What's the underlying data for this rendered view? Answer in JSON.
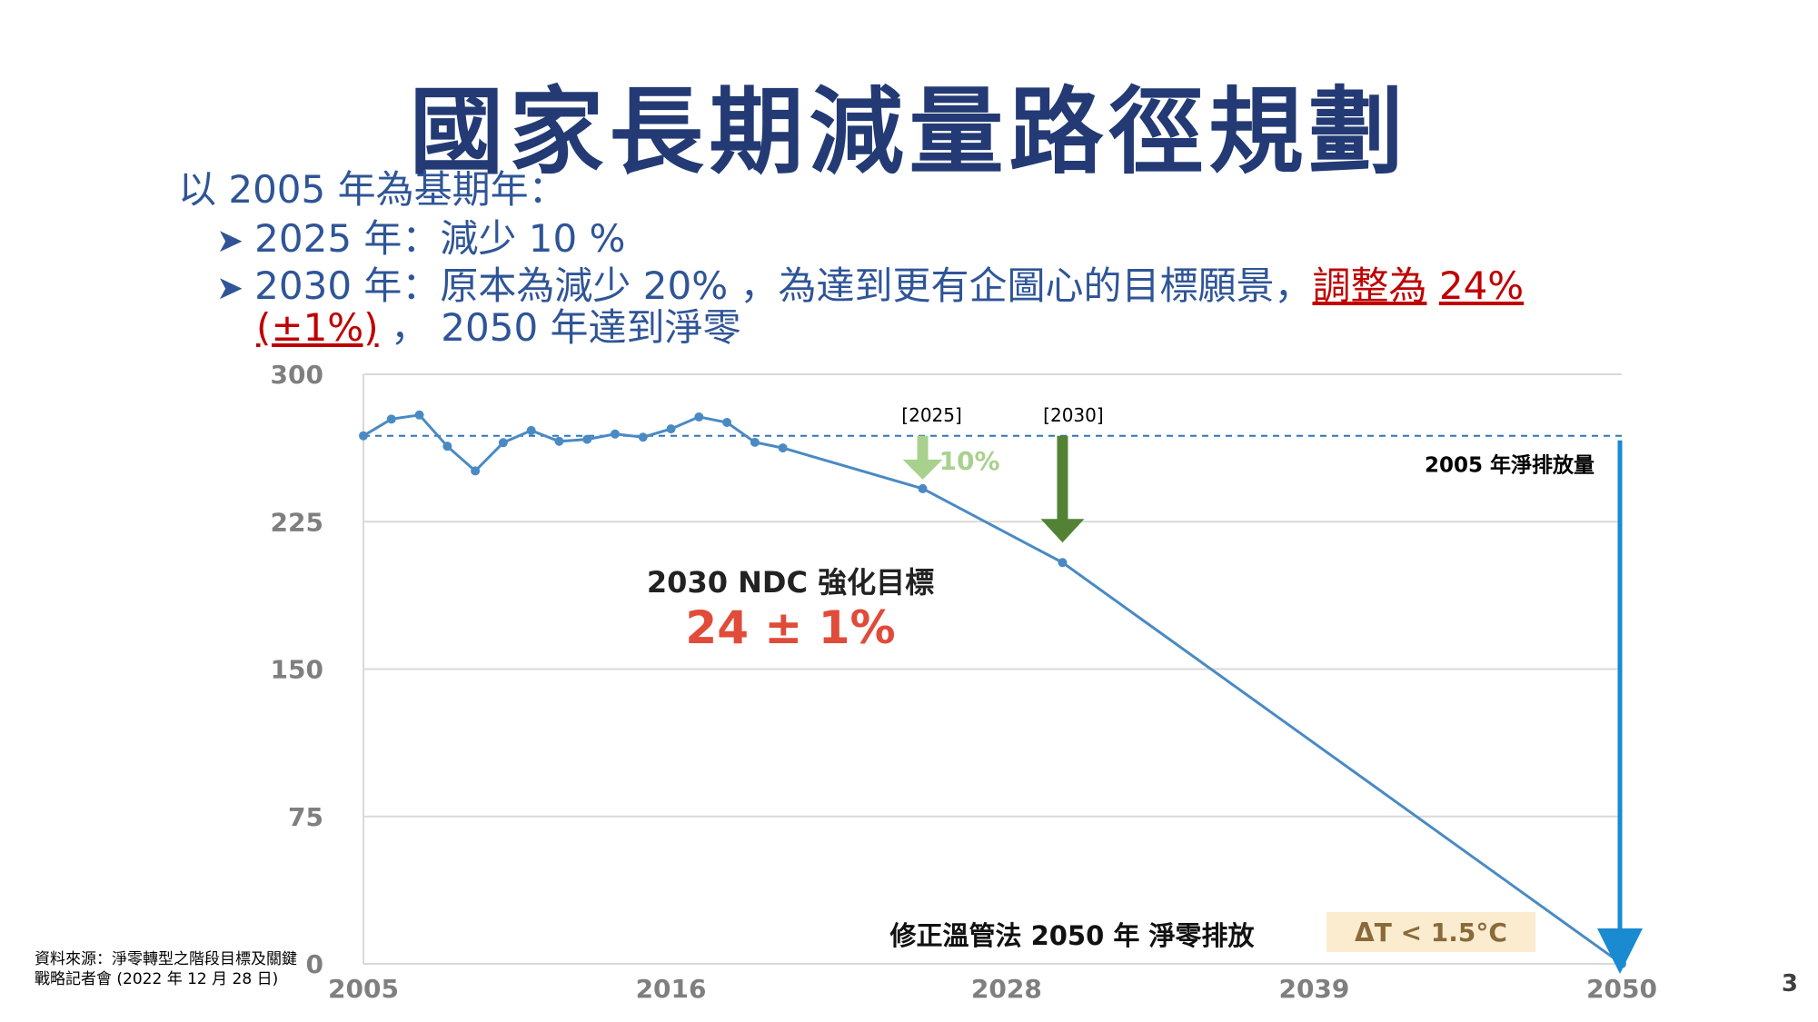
{
  "slide": {
    "title": "國家長期減量路徑規劃",
    "intro": "以 2005 年為基期年：",
    "bullets": [
      {
        "text": "2025 年：減少 10 %"
      },
      {
        "text_before": "2030 年：原本為減少 20% ，為達到更有企圖心的目標願景，",
        "hl1": "調整為",
        "hl2": "24%",
        "hl3": "(±1%)",
        "text_after": "， 2050 年達到淨零"
      }
    ],
    "source": "資料來源：淨零轉型之階段目標及關鍵戰略記者會 (2022 年 12 月 28 日)",
    "page_number": "3"
  },
  "chart_data": {
    "type": "line",
    "x_ticks": [
      "2005",
      "2016",
      "2028",
      "2039",
      "2050"
    ],
    "y_ticks": [
      "0",
      "75",
      "150",
      "225",
      "300"
    ],
    "ylim": [
      0,
      300
    ],
    "xlim": [
      2005,
      2050
    ],
    "grid": true,
    "series": [
      {
        "historical": [
          [
            2005,
            268.7
          ],
          [
            2006,
            277.2
          ],
          [
            2007,
            279.3
          ],
          [
            2008,
            263.4
          ],
          [
            2009,
            250.8
          ],
          [
            2010,
            265.2
          ],
          [
            2011,
            271.4
          ],
          [
            2012,
            265.9
          ],
          [
            2013,
            266.9
          ],
          [
            2014,
            269.6
          ],
          [
            2015,
            268.0
          ],
          [
            2016,
            272.2
          ],
          [
            2017,
            278.3
          ],
          [
            2018,
            275.5
          ],
          [
            2019,
            265.4
          ],
          [
            2020,
            262.5
          ]
        ],
        "pathway": [
          [
            2020,
            262.5
          ],
          [
            2025,
            241.8
          ],
          [
            2030,
            204.2
          ],
          [
            2050,
            0
          ]
        ],
        "markers": [
          [
            2025,
            241.8
          ],
          [
            2030,
            204.2
          ],
          [
            2050,
            0
          ]
        ]
      }
    ],
    "baseline": {
      "value": 268.7,
      "label": "2005 年淨排放量"
    },
    "annotations": {
      "a2025": {
        "bracket": "[2025]",
        "value": "10%"
      },
      "a2030": {
        "bracket": "[2030]"
      },
      "ndc_title": "2030 NDC 強化目標",
      "ndc_value": "24 ± 1%",
      "netzero": "修正溫管法 2050 年 淨零排放",
      "temp_box": "ΔT < 1.5°C"
    },
    "colors": {
      "line": "#4a8ac4",
      "baseline": "#2e75b6",
      "arrow_light": "#a9d18e",
      "arrow_dark": "#548235",
      "big_arrow": "#1a8ad1",
      "ndc_value": "#e04b3a",
      "temp_box": "#fbeccf",
      "grid": "#d9d9d9",
      "axis_text": "#7f7f7f"
    }
  }
}
